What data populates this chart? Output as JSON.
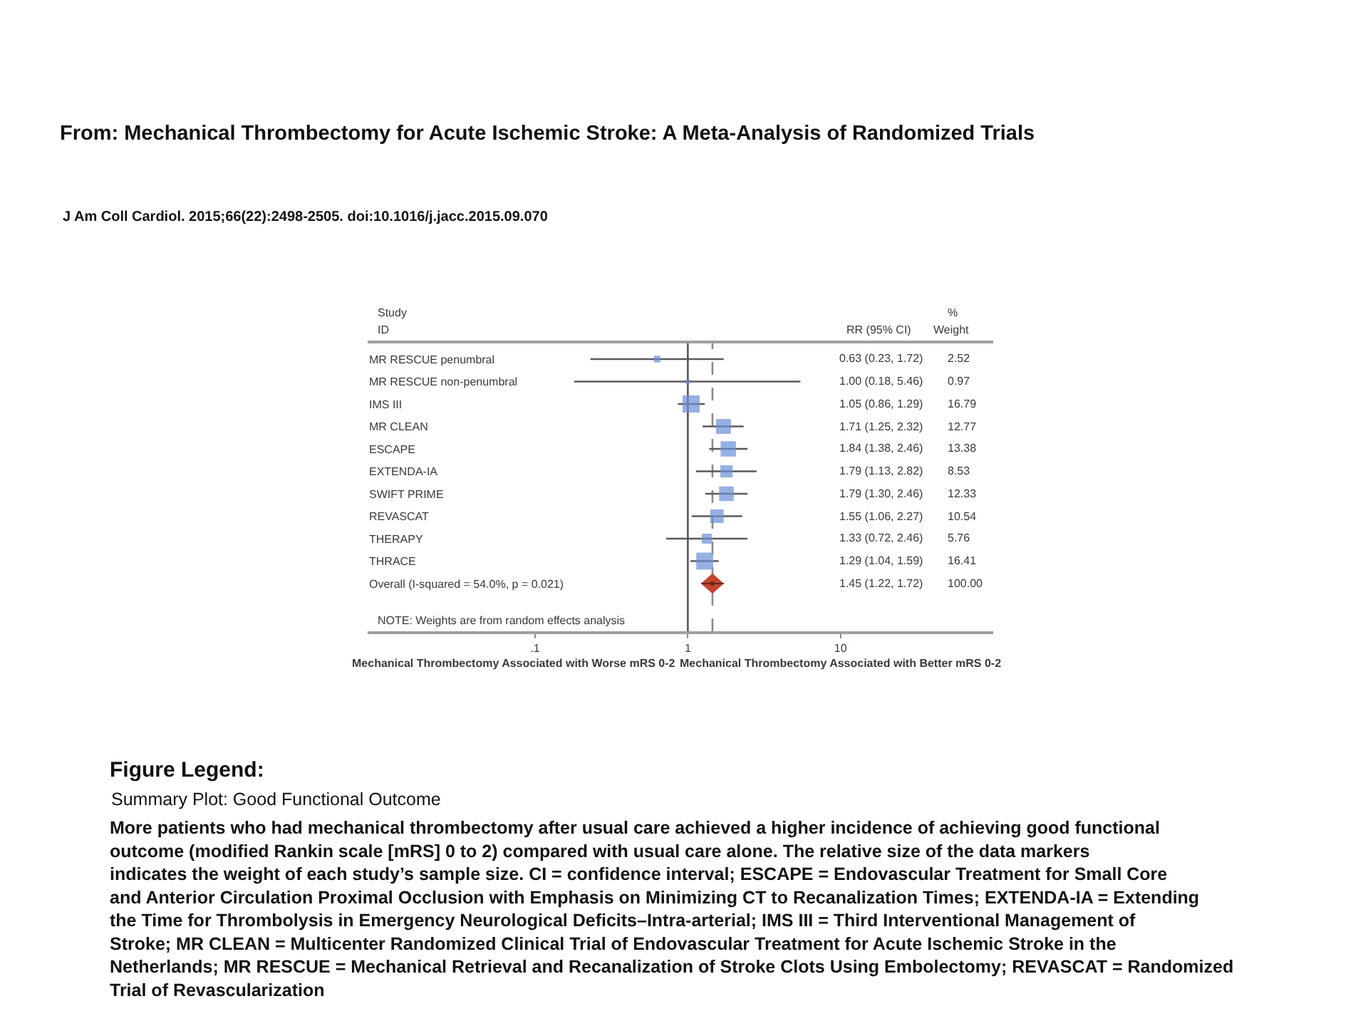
{
  "chart_data": {
    "type": "scatter",
    "orientation": "horizontal",
    "log": "x",
    "title": "From: Mechanical Thrombectomy for Acute Ischemic Stroke: A Meta-Analysis of Randomized Trials",
    "subtitle": "J Am Coll Cardiol. 2015;66(22):2498-2505. doi:10.1016/j.jacc.2015.09.070",
    "categories": [
      "MR RESCUE penumbral",
      "MR RESCUE non-penumbral",
      "IMS III",
      "MR CLEAN",
      "ESCAPE",
      "EXTENDA-IA",
      "SWIFT PRIME",
      "REVASCAT",
      "THERAPY",
      "THRACE",
      "Overall (I-squared = 54.0%, p = 0.021)"
    ],
    "series": [
      {
        "type": "bubble",
        "marker": "square",
        "color": "#6b8fd6",
        "values": [
          0.63,
          1.0,
          1.05,
          1.71,
          1.84,
          1.79,
          1.79,
          1.55,
          1.33,
          1.29,
          null
        ],
        "errors": [
          [
            0.23,
            1.72
          ],
          [
            0.18,
            5.46
          ],
          [
            0.86,
            1.29
          ],
          [
            1.25,
            2.32
          ],
          [
            1.38,
            2.46
          ],
          [
            1.13,
            2.82
          ],
          [
            1.3,
            2.46
          ],
          [
            1.06,
            2.27
          ],
          [
            0.72,
            2.46
          ],
          [
            1.04,
            1.59
          ],
          null
        ],
        "sizes": [
          0.15,
          0.06,
          1,
          0.76,
          0.8,
          0.51,
          0.73,
          0.63,
          0.34,
          0.98,
          null
        ]
      },
      {
        "marker": "diamond",
        "color": "#c0462e",
        "values": [
          null,
          null,
          null,
          null,
          null,
          null,
          null,
          null,
          null,
          null,
          1.45
        ],
        "errors": [
          null,
          null,
          null,
          null,
          null,
          null,
          null,
          null,
          null,
          null,
          [
            1.22,
            1.72
          ]
        ]
      }
    ],
    "xlim": [
      0.008,
      100
    ],
    "xticks": [
      {
        "value": 0.1,
        "label": ".1"
      },
      1,
      10
    ],
    "ref_lines": [
      {
        "axis": "x",
        "value": 1,
        "color": "#555555",
        "line_style": "solid"
      },
      {
        "axis": "x",
        "value": 1.45,
        "color": "#8a8a8a",
        "line_style": "dashed"
      }
    ],
    "annotations": [
      "Study",
      "ID",
      "RR (95% CI)",
      "%",
      "Weight",
      "NOTE: Weights are from random effects analysis",
      "Mechanical Thrombectomy Associated with Worse mRS 0-2",
      "Mechanical Thrombectomy Associated with Better mRS 0-2",
      "Figure Legend:",
      "Summary Plot: Good Functional Outcome",
      "More patients who had mechanical thrombectomy after usual care achieved a higher incidence of achieving good functional outcome (modified Rankin scale [mRS] 0 to 2) compared with usual care alone. The relative size of the data markers indicates the weight of each study’s sample size. CI = confidence interval; ESCAPE = Endovascular Treatment for Small Core and Anterior Circulation Proximal Occlusion with Emphasis on Minimizing CT to Recanalization Times; EXTENDA-IA = Extending the Time for Thrombolysis in Emergency Neurological Deficits–Intra-arterial; IMS III = Third Interventional Management of Stroke; MR CLEAN = Multicenter Randomized Clinical Trial of Endovascular Treatment for Acute Ischemic Stroke in the Netherlands; MR RESCUE = Mechanical Retrieval and Recanalization of Stroke Clots Using Embolectomy; REVASCAT = Randomized Trial of Revascularization",
      "0.63 (0.23, 1.72)",
      "1.00 (0.18, 5.46)",
      "1.05 (0.86, 1.29)",
      "1.71 (1.25, 2.32)",
      "1.84 (1.38, 2.46)",
      "1.79 (1.13, 2.82)",
      "1.79 (1.30, 2.46)",
      "1.55 (1.06, 2.27)",
      "1.33 (0.72, 2.46)",
      "1.29 (1.04, 1.59)",
      "1.45 (1.22, 1.72)",
      "2.52",
      "0.97",
      "16.79",
      "12.77",
      "13.38",
      "8.53",
      "12.33",
      "10.54",
      "5.76",
      "16.41",
      "100.00"
    ]
  }
}
